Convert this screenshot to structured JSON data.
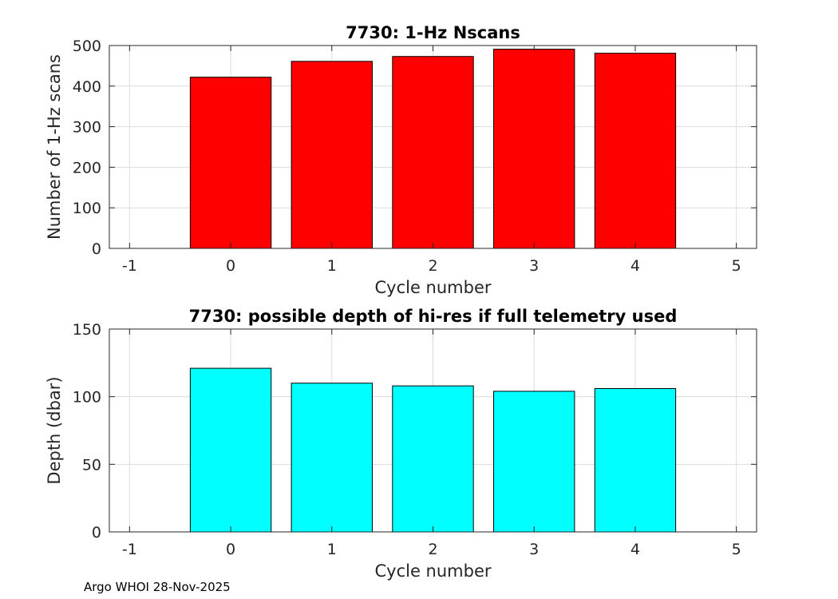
{
  "chart_data": [
    {
      "type": "bar",
      "title": "7730: 1-Hz Nscans",
      "xlabel": "Cycle number",
      "ylabel": "Number of 1-Hz scans",
      "x": [
        0,
        1,
        2,
        3,
        4
      ],
      "values": [
        422,
        461,
        473,
        491,
        481
      ],
      "xlim": [
        -1.2,
        5.2
      ],
      "ylim": [
        0,
        500
      ],
      "xticks": [
        -1,
        0,
        1,
        2,
        3,
        4,
        5
      ],
      "yticks": [
        0,
        100,
        200,
        300,
        400,
        500
      ],
      "bar_color": "#ff0000",
      "grid": true
    },
    {
      "type": "bar",
      "title": "7730: possible depth of hi-res if full telemetry used",
      "xlabel": "Cycle number",
      "ylabel": "Depth (dbar)",
      "x": [
        0,
        1,
        2,
        3,
        4
      ],
      "values": [
        121,
        110,
        108,
        104,
        106
      ],
      "xlim": [
        -1.2,
        5.2
      ],
      "ylim": [
        0,
        150
      ],
      "xticks": [
        -1,
        0,
        1,
        2,
        3,
        4,
        5
      ],
      "yticks": [
        0,
        50,
        100,
        150
      ],
      "bar_color": "#00ffff",
      "grid": true
    }
  ],
  "footer": "Argo WHOI 28-Nov-2025"
}
